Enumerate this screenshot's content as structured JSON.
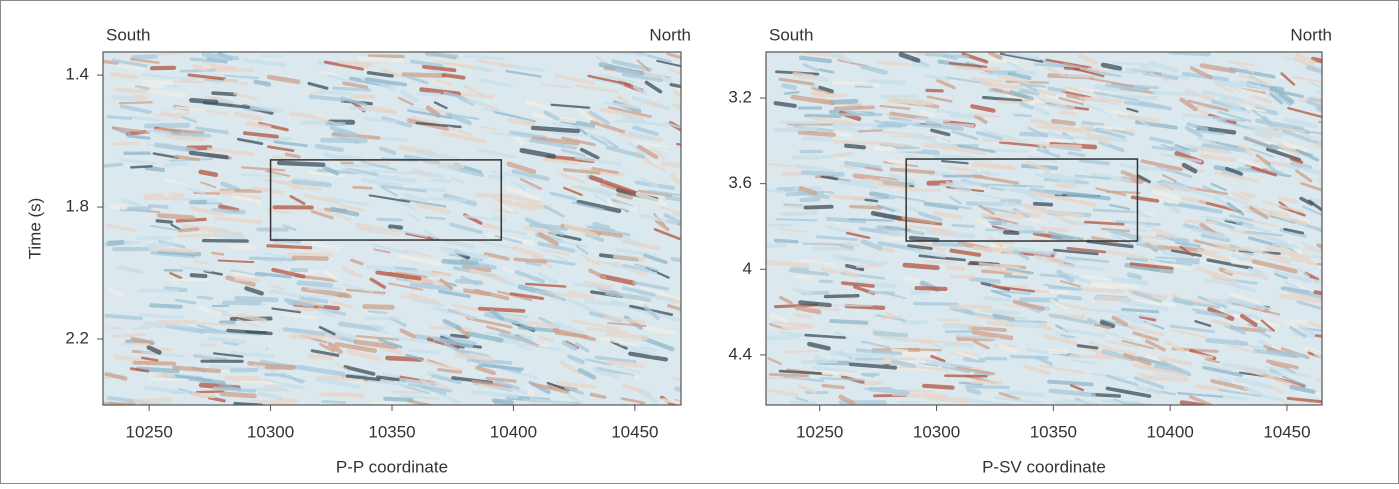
{
  "chart_data": [
    {
      "type": "seismic",
      "left_label": "South",
      "right_label": "North",
      "ylabel": "Time (s)",
      "xlabel": "P-P coordinate",
      "xlim": [
        10231,
        10469
      ],
      "xticks": [
        10250,
        10300,
        10350,
        10400,
        10450
      ],
      "ylim": [
        1.33,
        2.4
      ],
      "yticks": [
        1.4,
        1.8,
        2.2
      ],
      "y_inverted": true,
      "box": {
        "x": [
          10300,
          10395
        ],
        "y": [
          1.657,
          1.9
        ]
      }
    },
    {
      "type": "seismic",
      "left_label": "South",
      "right_label": "North",
      "xlabel": "P-SV coordinate",
      "xlim": [
        10227,
        10465
      ],
      "xticks": [
        10250,
        10300,
        10350,
        10400,
        10450
      ],
      "ylim": [
        2.985,
        4.634
      ],
      "yticks": [
        3.2,
        3.6,
        4.0,
        4.4
      ],
      "y_inverted": true,
      "box": {
        "x": [
          10287,
          10386
        ],
        "y": [
          3.485,
          3.868
        ]
      }
    }
  ]
}
